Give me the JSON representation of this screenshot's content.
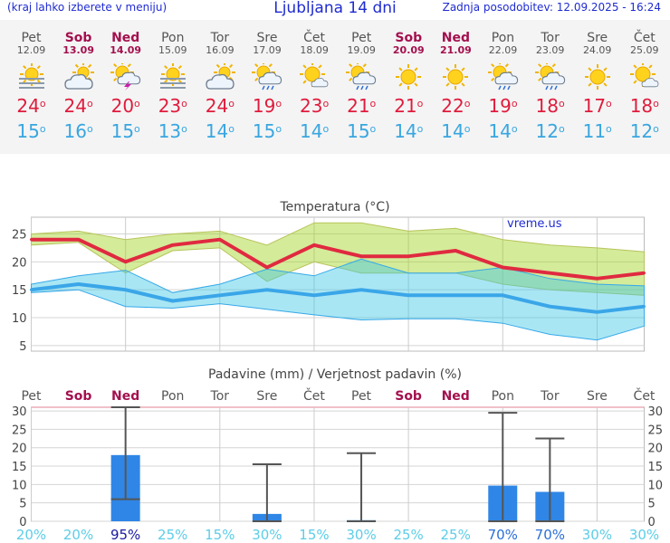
{
  "header": {
    "note": "(kraj lahko izberete v meniju)",
    "title": "Ljubljana 14 dni",
    "updated": "Zadnja posodobitev: 12.09.2025 - 16:24"
  },
  "colors": {
    "max": "#e02a40",
    "min": "#3aa6e8",
    "weekend": "#a3104e",
    "bar": "#2f86e6"
  },
  "days": [
    {
      "name": "Pet",
      "date": "12.09",
      "weekend": false,
      "icon": "sun-fog-icon",
      "max": "24",
      "min": "15"
    },
    {
      "name": "Sob",
      "date": "13.09",
      "weekend": true,
      "icon": "sun-cloud-icon",
      "max": "24",
      "min": "16"
    },
    {
      "name": "Ned",
      "date": "14.09",
      "weekend": true,
      "icon": "sun-cloud-storm-icon",
      "max": "20",
      "min": "15"
    },
    {
      "name": "Pon",
      "date": "15.09",
      "weekend": false,
      "icon": "sun-fog-icon",
      "max": "23",
      "min": "13"
    },
    {
      "name": "Tor",
      "date": "16.09",
      "weekend": false,
      "icon": "sun-cloud-icon",
      "max": "24",
      "min": "14"
    },
    {
      "name": "Sre",
      "date": "17.09",
      "weekend": false,
      "icon": "sun-cloud-rain-icon",
      "max": "19",
      "min": "15"
    },
    {
      "name": "Čet",
      "date": "18.09",
      "weekend": false,
      "icon": "sun-cloud-small-icon",
      "max": "23",
      "min": "14"
    },
    {
      "name": "Pet",
      "date": "19.09",
      "weekend": false,
      "icon": "sun-cloud-rain-icon",
      "max": "21",
      "min": "15"
    },
    {
      "name": "Sob",
      "date": "20.09",
      "weekend": true,
      "icon": "sun-icon",
      "max": "21",
      "min": "14"
    },
    {
      "name": "Ned",
      "date": "21.09",
      "weekend": true,
      "icon": "sun-icon",
      "max": "22",
      "min": "14"
    },
    {
      "name": "Pon",
      "date": "22.09",
      "weekend": false,
      "icon": "sun-cloud-rain-icon",
      "max": "19",
      "min": "14"
    },
    {
      "name": "Tor",
      "date": "23.09",
      "weekend": false,
      "icon": "sun-cloud-rain-icon",
      "max": "18",
      "min": "12"
    },
    {
      "name": "Sre",
      "date": "24.09",
      "weekend": false,
      "icon": "sun-icon",
      "max": "17",
      "min": "11"
    },
    {
      "name": "Čet",
      "date": "25.09",
      "weekend": false,
      "icon": "sun-cloud-small-icon",
      "max": "18",
      "min": "12"
    }
  ],
  "chart_data": [
    {
      "type": "line",
      "title": "Temperatura (°C)",
      "watermark": "vreme.us",
      "x": [
        "12.09",
        "13.09",
        "14.09",
        "15.09",
        "16.09",
        "17.09",
        "18.09",
        "19.09",
        "20.09",
        "21.09",
        "22.09",
        "23.09",
        "24.09",
        "25.09"
      ],
      "ylim": [
        4,
        28
      ],
      "yticks": [
        5,
        10,
        15,
        20,
        25
      ],
      "grid": true,
      "series": [
        {
          "values": [
            24,
            24,
            20,
            23,
            24,
            19,
            23,
            21,
            21,
            22,
            19,
            18,
            17,
            18
          ]
        },
        {
          "values": [
            15,
            16,
            15,
            13,
            14,
            15,
            14,
            15,
            14,
            14,
            14,
            12,
            11,
            12
          ]
        }
      ],
      "bands": [
        {
          "upper": [
            25,
            25.5,
            24,
            25,
            25.5,
            23,
            27,
            27,
            25.5,
            26,
            24,
            23,
            22.5,
            21.8
          ],
          "lower": [
            23,
            23.5,
            18,
            22,
            22.5,
            16.5,
            20,
            18,
            18,
            18,
            16,
            15,
            14.5,
            14
          ]
        },
        {
          "upper": [
            16,
            17.5,
            18.5,
            14.5,
            16,
            18.7,
            17.5,
            20.5,
            18,
            18,
            19,
            17,
            16,
            15.7
          ],
          "lower": [
            14.5,
            15,
            12,
            11.7,
            12.5,
            11.5,
            10.5,
            9.6,
            9.8,
            9.8,
            9,
            7,
            6,
            8.5
          ]
        }
      ]
    },
    {
      "type": "bar",
      "title": "Padavine (mm) / Verjetnost padavin (%)",
      "categories": [
        "Pet",
        "Sob",
        "Ned",
        "Pon",
        "Tor",
        "Sre",
        "Čet",
        "Pet",
        "Sob",
        "Ned",
        "Pon",
        "Tor",
        "Sre",
        "Čet"
      ],
      "weekend": [
        false,
        true,
        true,
        false,
        false,
        false,
        false,
        false,
        true,
        true,
        false,
        false,
        false,
        false
      ],
      "ylim": [
        0,
        31
      ],
      "yticks": [
        0,
        5,
        10,
        15,
        20,
        25,
        30
      ],
      "values": [
        0,
        0,
        18,
        0,
        0,
        2,
        0,
        0.3,
        0,
        0,
        9.7,
        8,
        0,
        0
      ],
      "ranges": [
        null,
        null,
        [
          6,
          31
        ],
        null,
        null,
        [
          0,
          15.5
        ],
        null,
        [
          0,
          18.5
        ],
        null,
        null,
        [
          0,
          29.5
        ],
        [
          0,
          22.5
        ],
        null,
        null
      ],
      "probability": [
        "20%",
        "20%",
        "95%",
        "25%",
        "15%",
        "30%",
        "15%",
        "30%",
        "25%",
        "25%",
        "70%",
        "70%",
        "30%",
        "30%"
      ],
      "probability_values": [
        20,
        20,
        95,
        25,
        15,
        30,
        15,
        30,
        25,
        25,
        70,
        70,
        30,
        30
      ]
    }
  ]
}
